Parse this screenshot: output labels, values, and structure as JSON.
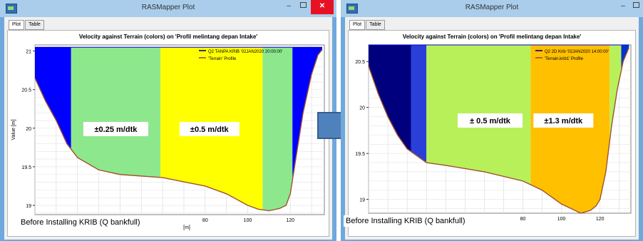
{
  "colors": {
    "titlebar": "#a9cdeb",
    "frame": "#6fa8dc",
    "close": "#e81123",
    "arrow": "#4f81bd"
  },
  "windows": [
    {
      "title": "RASMapper Plot",
      "close_glyph": "✕",
      "tabs": [
        "Plot",
        "Table"
      ],
      "plot_title": "Velocity against Terrain (colors) on 'Profil melintang depan Intake'",
      "caption": "Before Installing KRIB (Q bankfull)",
      "chart_data": {
        "type": "area",
        "ylabel": "Value [m]",
        "xlabel": "[m]",
        "xlim": [
          0,
          136
        ],
        "ylim": [
          18.88,
          21.08
        ],
        "yticks": [
          19,
          19.5,
          20,
          20.5,
          21
        ],
        "xticks": [
          80,
          100,
          120
        ],
        "water_level": 21.05,
        "legend": [
          "Q2 TANPA KRIB '02JAN2020 20:00:00'",
          "'Terrain' Profile"
        ],
        "terrain_profile": {
          "x": [
            0,
            5,
            10,
            15,
            20,
            30,
            40,
            60,
            80,
            90,
            100,
            105,
            110,
            115,
            118,
            120,
            122,
            124,
            126,
            130,
            133,
            135
          ],
          "y": [
            20.65,
            20.35,
            20.1,
            19.8,
            19.62,
            19.46,
            19.4,
            19.36,
            19.25,
            19.15,
            19.0,
            18.95,
            18.93,
            18.96,
            19.0,
            19.15,
            19.5,
            19.85,
            20.2,
            20.7,
            20.95,
            21.02
          ]
        },
        "velocity_bands": [
          {
            "x0": 0,
            "x1": 17,
            "color": "#0000ff"
          },
          {
            "x0": 17,
            "x1": 59,
            "color": "#8de88d"
          },
          {
            "x0": 59,
            "x1": 107,
            "color": "#ffff00"
          },
          {
            "x0": 107,
            "x1": 121,
            "color": "#8de88d"
          },
          {
            "x0": 121,
            "x1": 136,
            "color": "#0000ff"
          }
        ],
        "labels": [
          {
            "text": "±0.25 m/dtk",
            "x": 38,
            "y": 19.98
          },
          {
            "text": "±0.5 m/dtk",
            "x": 82,
            "y": 19.98
          }
        ]
      }
    },
    {
      "title": "RASMapper Plot",
      "close_glyph": "✕",
      "tabs": [
        "Plot",
        "Table"
      ],
      "plot_title": "Velocity against Terrain (colors) on 'Profil melintang depan Intake'",
      "caption": "Before Installing KRIB (Q bankfull)",
      "chart_data": {
        "type": "area",
        "ylabel": "",
        "xlabel": "",
        "xlim": [
          0,
          136
        ],
        "ylim": [
          18.85,
          20.68
        ],
        "yticks": [
          19,
          19.5,
          20,
          20.5
        ],
        "xticks": [
          80,
          100,
          120
        ],
        "water_level": 20.68,
        "legend": [
          "Q2 2D Krib '02JAN2020 14:00:00'",
          "'Terrain.krib1' Profile"
        ],
        "terrain_profile": {
          "x": [
            0,
            5,
            10,
            15,
            20,
            30,
            40,
            60,
            80,
            90,
            100,
            105,
            110,
            115,
            118,
            120,
            123,
            126,
            129,
            132,
            135
          ],
          "y": [
            20.45,
            20.15,
            19.9,
            19.7,
            19.55,
            19.4,
            19.37,
            19.3,
            19.2,
            19.1,
            18.95,
            18.9,
            18.85,
            18.88,
            18.93,
            19.0,
            19.3,
            19.8,
            20.2,
            20.5,
            20.65
          ]
        },
        "velocity_bands": [
          {
            "x0": 0,
            "x1": 22,
            "color": "#00007f"
          },
          {
            "x0": 22,
            "x1": 30,
            "color": "#2a3fd8"
          },
          {
            "x0": 30,
            "x1": 84,
            "color": "#b8f05a"
          },
          {
            "x0": 84,
            "x1": 125,
            "color": "#ffc000"
          },
          {
            "x0": 125,
            "x1": 131,
            "color": "#b8f05a"
          },
          {
            "x0": 131,
            "x1": 136,
            "color": "#0033cc"
          }
        ],
        "labels": [
          {
            "text": "± 0.5 m/dtk",
            "x": 63,
            "y": 19.85
          },
          {
            "text": "±1.3 m/dtk",
            "x": 101,
            "y": 19.85
          }
        ]
      }
    }
  ]
}
